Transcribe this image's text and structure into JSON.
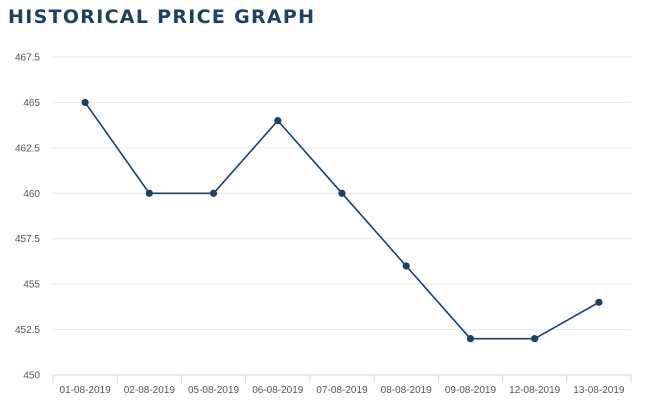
{
  "page": {
    "title": "HISTORICAL PRICE GRAPH"
  },
  "colors": {
    "title": "#1d4064",
    "line": "#1d4064",
    "grid": "#e6e6e6",
    "axis": "#cfd8e3",
    "tick_text": "#555555"
  },
  "chart_data": {
    "type": "line",
    "title": "HISTORICAL PRICE GRAPH",
    "xlabel": "",
    "ylabel": "",
    "categories": [
      "01-08-2019",
      "02-08-2019",
      "05-08-2019",
      "06-08-2019",
      "07-08-2019",
      "08-08-2019",
      "09-08-2019",
      "12-08-2019",
      "13-08-2019"
    ],
    "series": [
      {
        "values": [
          465,
          460,
          460,
          464,
          460,
          456,
          452,
          452,
          454
        ]
      }
    ],
    "ylim": [
      450,
      467.5
    ],
    "yticks": [
      "450",
      "452.5",
      "455",
      "457.5",
      "460",
      "462.5",
      "465",
      "467.5"
    ],
    "grid": true,
    "legend": "none"
  }
}
